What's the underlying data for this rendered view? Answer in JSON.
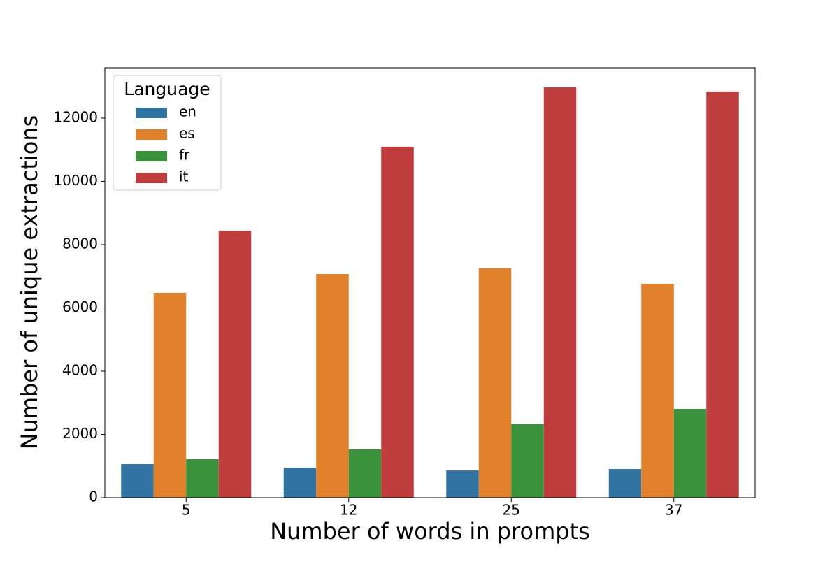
{
  "chart_data": {
    "type": "bar",
    "x_label": "Number of words in prompts",
    "y_label": "Number of unique extractions",
    "categories": [
      "5",
      "12",
      "25",
      "37"
    ],
    "series": [
      {
        "name": "en",
        "color": "#3274a1",
        "values": [
          1060,
          950,
          860,
          905
        ]
      },
      {
        "name": "es",
        "color": "#e1812c",
        "values": [
          6475,
          7070,
          7250,
          6760
        ]
      },
      {
        "name": "fr",
        "color": "#3a923a",
        "values": [
          1215,
          1525,
          2320,
          2805
        ]
      },
      {
        "name": "it",
        "color": "#c03d3e",
        "values": [
          8440,
          11095,
          12970,
          12840
        ]
      }
    ],
    "legend_title": "Language",
    "legend": "upper left",
    "ylim": [
      0,
      13590
    ],
    "yticks": [
      0,
      2000,
      4000,
      6000,
      8000,
      10000,
      12000
    ]
  }
}
